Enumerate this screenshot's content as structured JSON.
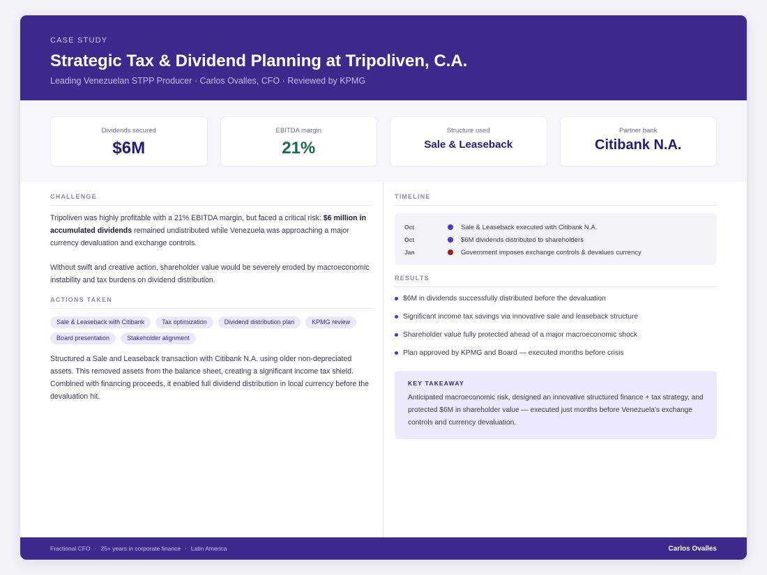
{
  "header": {
    "eyebrow": "CASE STUDY",
    "title": "Strategic Tax & Dividend Planning at Tripoliven, C.A.",
    "subtitle": "Leading Venezuelan STPP Producer · Carlos Ovalles, CFO · Reviewed by KPMG"
  },
  "stats": [
    {
      "label": "Dividends secured",
      "value": "$6M"
    },
    {
      "label": "EBITDA margin",
      "value": "21%",
      "color": "#1d6b4f"
    },
    {
      "label": "Structure used",
      "value": "Sale & Leaseback"
    },
    {
      "label": "Partner bank",
      "value": "Citibank N.A."
    }
  ],
  "challenge": {
    "heading": "CHALLENGE",
    "p1_before": "Tripoliven was highly profitable with a 21% EBITDA margin, but faced a critical risk: ",
    "p1_bold": "$6 million in accumulated dividends",
    "p1_after": " remained undistributed while Venezuela was approaching a major currency devaluation and exchange controls.",
    "p2": "Without swift and creative action, shareholder value would be severely eroded by macroeconomic instability and tax burdens on dividend distribution."
  },
  "actions": {
    "heading": "ACTIONS TAKEN",
    "chips": [
      "Sale & Leaseback with Citibank",
      "Tax optimization",
      "Dividend distribution plan",
      "KPMG review",
      "Board presentation",
      "Stakeholder alignment"
    ],
    "paragraph": "Structured a Sale and Leaseback transaction with Citibank N.A. using older non-depreciated assets. This removed assets from the balance sheet, creating a significant income tax shield. Combined with financing proceeds, it enabled full dividend distribution in local currency before the devaluation hit."
  },
  "timeline": {
    "heading": "TIMELINE",
    "items": [
      {
        "month": "Oct",
        "text": "Sale & Leaseback executed with Citibank N.A.",
        "color": "#4b3bbd"
      },
      {
        "month": "Oct",
        "text": "$6M dividends distributed to shareholders",
        "color": "#4b3bbd"
      },
      {
        "month": "Jan",
        "text": "Government imposes exchange controls & devalues currency",
        "color": "#a01a1a"
      }
    ]
  },
  "results": {
    "heading": "RESULTS",
    "items": [
      "$6M in dividends successfully distributed before the devaluation",
      "Significant income tax savings via innovative sale and leaseback structure",
      "Shareholder value fully protected ahead of a major macroeconomic shock",
      "Plan approved by KPMG and Board — executed months before crisis"
    ]
  },
  "takeaway": {
    "heading": "KEY TAKEAWAY",
    "text": "Anticipated macroeconomic risk, designed an innovative structured finance + tax strategy, and protected $6M in shareholder value — executed just months before Venezuela's exchange controls and currency devaluation."
  },
  "footer": {
    "left": [
      "Fractional CFO",
      "·",
      "25+ years in corporate finance",
      "·",
      "Latin America"
    ],
    "right": "Carlos Ovalles"
  }
}
